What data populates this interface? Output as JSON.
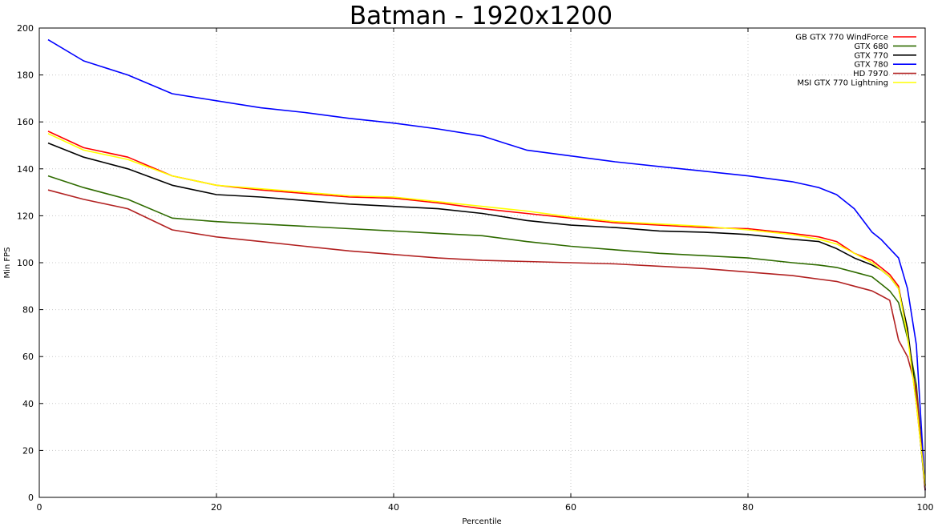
{
  "chart_data": {
    "type": "line",
    "title": "Batman - 1920x1200",
    "xlabel": "Percentile",
    "ylabel": "Min FPS",
    "xlim": [
      0,
      100
    ],
    "ylim": [
      0,
      200
    ],
    "xticks": [
      "0",
      "20",
      "40",
      "60",
      "80",
      "100"
    ],
    "yticks": [
      "0",
      "20",
      "40",
      "60",
      "80",
      "100",
      "120",
      "140",
      "160",
      "180",
      "200"
    ],
    "grid": true,
    "legend_position": "top-right",
    "x": [
      1,
      5,
      10,
      15,
      20,
      25,
      30,
      35,
      40,
      45,
      50,
      55,
      60,
      65,
      70,
      75,
      80,
      85,
      88,
      90,
      92,
      94,
      95,
      96,
      97,
      98,
      99,
      100
    ],
    "series": [
      {
        "name": "GB GTX 770 WindForce",
        "color": "#ff0000",
        "values": [
          156,
          149,
          145,
          137,
          133,
          131,
          129.5,
          128,
          127.5,
          125.5,
          123,
          121,
          119,
          117,
          116,
          115,
          114.5,
          112.5,
          111,
          109,
          104,
          101,
          98,
          95,
          90,
          70,
          40,
          5
        ]
      },
      {
        "name": "GTX 680",
        "color": "#2f6b00",
        "values": [
          137,
          132,
          127,
          119,
          117.5,
          116.5,
          115.5,
          114.5,
          113.5,
          112.5,
          111.5,
          109,
          107,
          105.5,
          104,
          103,
          102,
          100,
          99,
          98,
          96,
          94,
          91,
          88,
          83,
          68,
          48,
          5
        ]
      },
      {
        "name": "GTX 770",
        "color": "#000000",
        "values": [
          151,
          145,
          140,
          133,
          129,
          128,
          126.5,
          125,
          124,
          123,
          121,
          118,
          116,
          115,
          113.5,
          113,
          112,
          110,
          109,
          106,
          102,
          99,
          97,
          94,
          89,
          72,
          42,
          3
        ]
      },
      {
        "name": "GTX 780",
        "color": "#0000ff",
        "values": [
          195,
          186,
          180,
          172,
          169,
          166,
          164,
          161.5,
          159.5,
          157,
          154,
          148,
          145.5,
          143,
          141,
          139,
          137,
          134.5,
          132,
          129,
          123,
          113,
          110,
          106,
          102,
          89,
          65,
          3
        ]
      },
      {
        "name": "HD 7970",
        "color": "#b22222",
        "values": [
          131,
          127,
          123,
          114,
          111,
          109,
          107,
          105,
          103.5,
          102,
          101,
          100.5,
          100,
          99.5,
          98.5,
          97.5,
          96,
          94.5,
          93,
          92,
          90,
          88,
          86,
          84,
          67,
          60,
          46,
          3
        ]
      },
      {
        "name": "MSI GTX 770 Lightning",
        "color": "#ffff00",
        "values": [
          155,
          148,
          144,
          137,
          133,
          131.5,
          130,
          128.5,
          128,
          126,
          124,
          122,
          119.5,
          117.5,
          116.5,
          115.5,
          114,
          112,
          110,
          108,
          104,
          100,
          97,
          94,
          89,
          69,
          40,
          5
        ]
      }
    ]
  }
}
